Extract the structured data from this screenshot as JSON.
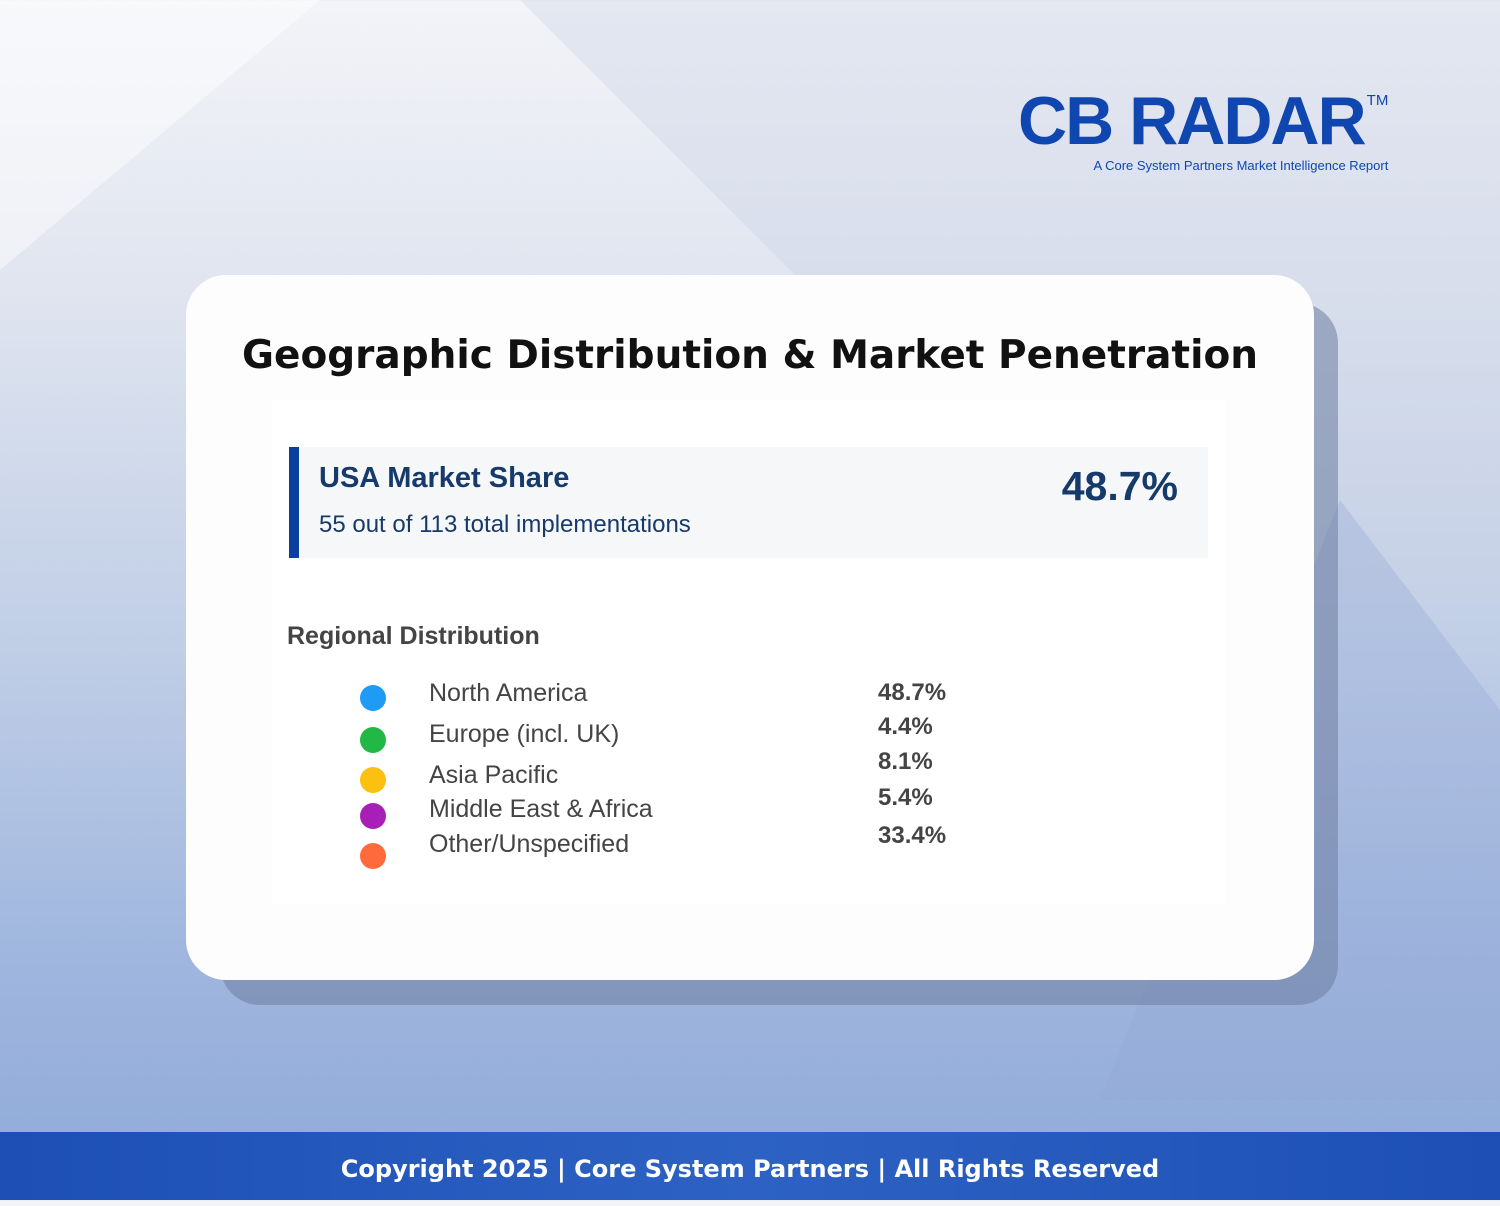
{
  "logo": {
    "text": "CB RADAR",
    "tm": "TM",
    "tagline": "A Core System Partners Market Intelligence Report"
  },
  "title": "Geographic Distribution & Market Penetration",
  "usa": {
    "title": "USA Market Share",
    "subtitle": "55 out of 113 total implementations",
    "value": "48.7%",
    "accent": "#0a3fa0"
  },
  "regional": {
    "heading": "Regional Distribution",
    "items": [
      {
        "label": "North America",
        "value": "48.7%",
        "color": "#1e9bf5"
      },
      {
        "label": "Europe (incl. UK)",
        "value": "4.4%",
        "color": "#22b845"
      },
      {
        "label": "Asia Pacific",
        "value": "8.1%",
        "color": "#fcc010"
      },
      {
        "label": "Middle East & Africa",
        "value": "5.4%",
        "color": "#a81fb8"
      },
      {
        "label": "Other/Unspecified",
        "value": "33.4%",
        "color": "#ff6a3d"
      }
    ]
  },
  "footer": "Copyright 2025 | Core System Partners | All Rights Reserved"
}
